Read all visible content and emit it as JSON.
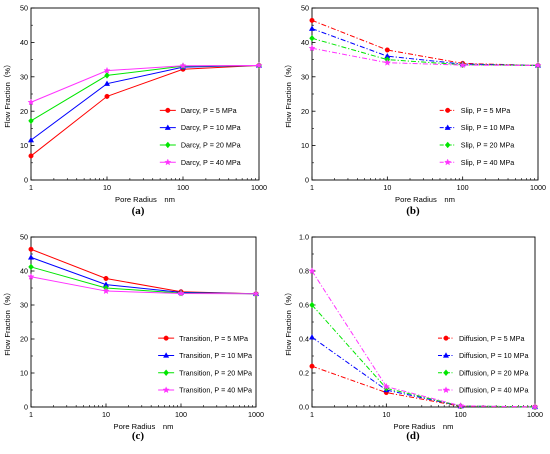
{
  "figure": {
    "colors": {
      "s5": "#ff0000",
      "s10": "#0000ff",
      "s20": "#00e600",
      "s40": "#ff33ff"
    }
  },
  "chart_data": [
    {
      "panel": "(a)",
      "type": "line",
      "line_style": "solid",
      "xlabel": "Pore Radius　nm",
      "ylabel": "Flow Fraction（%）",
      "xscale": "log",
      "xlim": [
        1,
        1000
      ],
      "ylim": [
        0,
        50
      ],
      "xticks": [
        1,
        10,
        100,
        1000
      ],
      "xtick_labels": [
        "1",
        "10",
        "100",
        "1000"
      ],
      "yticks": [
        0,
        10,
        20,
        30,
        40,
        50
      ],
      "ytick_labels": [
        "0",
        "10",
        "20",
        "30",
        "40",
        "50"
      ],
      "legend_position": "lower-right",
      "x": [
        1,
        10,
        100,
        1000
      ],
      "series": [
        {
          "name": "Darcy, P = 5 MPa",
          "color": "#ff0000",
          "marker": "circle",
          "values": [
            7.0,
            24.3,
            32.2,
            33.3
          ]
        },
        {
          "name": "Darcy, P = 10 MPa",
          "color": "#0000ff",
          "marker": "triangle",
          "values": [
            11.6,
            28.0,
            32.8,
            33.3
          ]
        },
        {
          "name": "Darcy, P = 20 MPa",
          "color": "#00e600",
          "marker": "diamond",
          "values": [
            17.2,
            30.4,
            33.1,
            33.3
          ]
        },
        {
          "name": "Darcy, P = 40 MPa",
          "color": "#ff33ff",
          "marker": "star",
          "values": [
            22.6,
            31.8,
            33.2,
            33.3
          ]
        }
      ]
    },
    {
      "panel": "(b)",
      "type": "line",
      "line_style": "dashdot",
      "xlabel": "Pore Radius　nm",
      "ylabel": "Flow Fraction（%）",
      "xscale": "log",
      "xlim": [
        1,
        1000
      ],
      "ylim": [
        0,
        50
      ],
      "xticks": [
        1,
        10,
        100,
        1000
      ],
      "xtick_labels": [
        "1",
        "10",
        "100",
        "1000"
      ],
      "yticks": [
        0,
        10,
        20,
        30,
        40,
        50
      ],
      "ytick_labels": [
        "0",
        "10",
        "20",
        "30",
        "40",
        "50"
      ],
      "legend_position": "lower-right",
      "x": [
        1,
        10,
        100,
        1000
      ],
      "series": [
        {
          "name": "Slip, P = 5 MPa",
          "color": "#ff0000",
          "marker": "circle",
          "values": [
            46.4,
            37.8,
            33.9,
            33.3
          ]
        },
        {
          "name": "Slip, P = 10 MPa",
          "color": "#0000ff",
          "marker": "triangle",
          "values": [
            44.0,
            36.0,
            33.7,
            33.3
          ]
        },
        {
          "name": "Slip, P = 20 MPa",
          "color": "#00e600",
          "marker": "diamond",
          "values": [
            41.2,
            35.0,
            33.5,
            33.3
          ]
        },
        {
          "name": "Slip, P = 40 MPa",
          "color": "#ff33ff",
          "marker": "star",
          "values": [
            38.3,
            34.1,
            33.4,
            33.3
          ]
        }
      ]
    },
    {
      "panel": "(c)",
      "type": "line",
      "line_style": "solid",
      "xlabel": "Pore Radius　nm",
      "ylabel": "Flow Fraction（%）",
      "xscale": "log",
      "xlim": [
        1,
        1000
      ],
      "ylim": [
        0,
        50
      ],
      "xticks": [
        1,
        10,
        100,
        1000
      ],
      "xtick_labels": [
        "1",
        "10",
        "100",
        "1000"
      ],
      "yticks": [
        0,
        10,
        20,
        30,
        40,
        50
      ],
      "ytick_labels": [
        "0",
        "10",
        "20",
        "30",
        "40",
        "50"
      ],
      "legend_position": "lower-right",
      "x": [
        1,
        10,
        100,
        1000
      ],
      "series": [
        {
          "name": "Transition, P = 5 MPa",
          "color": "#ff0000",
          "marker": "circle",
          "values": [
            46.4,
            37.8,
            33.9,
            33.3
          ]
        },
        {
          "name": "Transition, P = 10 MPa",
          "color": "#0000ff",
          "marker": "triangle",
          "values": [
            44.0,
            36.0,
            33.7,
            33.3
          ]
        },
        {
          "name": "Transition, P = 20 MPa",
          "color": "#00e600",
          "marker": "diamond",
          "values": [
            41.2,
            35.0,
            33.5,
            33.3
          ]
        },
        {
          "name": "Transition, P = 40 MPa",
          "color": "#ff33ff",
          "marker": "star",
          "values": [
            38.3,
            34.1,
            33.4,
            33.3
          ]
        }
      ]
    },
    {
      "panel": "(d)",
      "type": "line",
      "line_style": "dashdot",
      "xlabel": "Pore Radius　nm",
      "ylabel": "Flow Fraction（%）",
      "xscale": "log",
      "xlim": [
        1,
        1000
      ],
      "ylim": [
        0,
        1.0
      ],
      "xticks": [
        1,
        10,
        100,
        1000
      ],
      "xtick_labels": [
        "1",
        "10",
        "100",
        "1000"
      ],
      "yticks": [
        0,
        0.2,
        0.4,
        0.6,
        0.8,
        1.0
      ],
      "ytick_labels": [
        "0.0",
        "0.2",
        "0.4",
        "0.6",
        "0.8",
        "1.0"
      ],
      "legend_position": "lower-right",
      "x": [
        1,
        10,
        100,
        1000
      ],
      "series": [
        {
          "name": "Diffusion, P = 5 MPa",
          "color": "#ff0000",
          "marker": "circle",
          "values": [
            0.24,
            0.085,
            0.004,
            0.0004
          ]
        },
        {
          "name": "Diffusion, P = 10 MPa",
          "color": "#0000ff",
          "marker": "triangle",
          "values": [
            0.41,
            0.1,
            0.005,
            0.0005
          ]
        },
        {
          "name": "Diffusion, P = 20 MPa",
          "color": "#00e600",
          "marker": "diamond",
          "values": [
            0.6,
            0.11,
            0.006,
            0.0006
          ]
        },
        {
          "name": "Diffusion, P = 40 MPa",
          "color": "#ff33ff",
          "marker": "star",
          "values": [
            0.8,
            0.12,
            0.007,
            0.0007
          ]
        }
      ]
    }
  ]
}
